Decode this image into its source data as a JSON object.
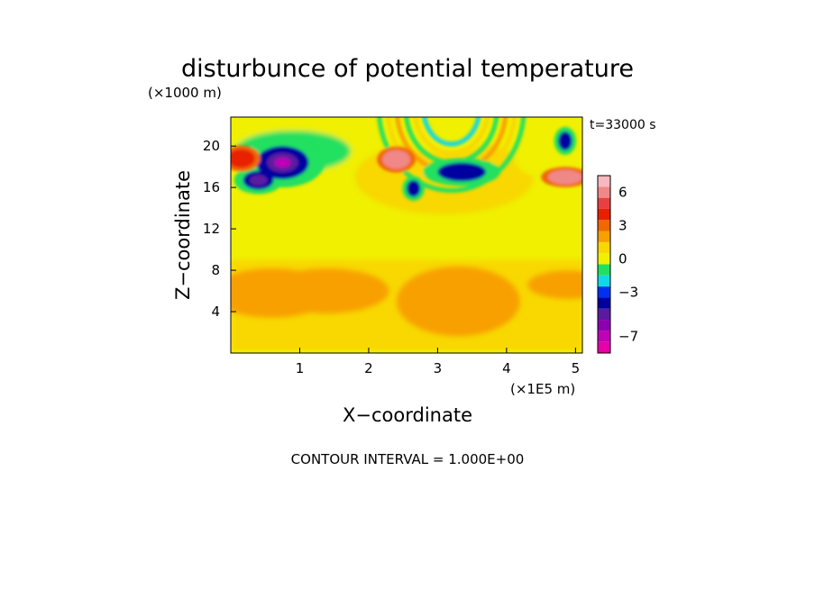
{
  "chart_data": {
    "type": "heatmap",
    "title": "disturbunce of potential temperature",
    "time_label": "t=33000 s",
    "xlabel": "X−coordinate",
    "ylabel": "Z−coordinate",
    "x_unit": "(×1E5 m)",
    "y_unit": "(×1000 m)",
    "xlim": [
      0,
      5.1
    ],
    "ylim": [
      0,
      22.8
    ],
    "x_ticks": [
      1,
      2,
      3,
      4,
      5
    ],
    "y_ticks": [
      4,
      8,
      12,
      16,
      20
    ],
    "footer": "CONTOUR INTERVAL = 1.000E+00",
    "colorbar": {
      "levels": [
        -9,
        -8,
        -7,
        -6,
        -5,
        -4,
        -3,
        -2,
        -1,
        0,
        1,
        2,
        3,
        4,
        5,
        6,
        7
      ],
      "colors": [
        "#e800a8",
        "#c000b8",
        "#8c00b0",
        "#5a1aa0",
        "#0000a0",
        "#0030f0",
        "#10d8e8",
        "#20e060",
        "#f0f000",
        "#f8d800",
        "#f8a000",
        "#f06800",
        "#e82000",
        "#e84040",
        "#f08888",
        "#f8b8c0"
      ],
      "tick_labels": [
        {
          "value": -7,
          "label": "−7"
        },
        {
          "value": -3,
          "label": "−3"
        },
        {
          "value": 0,
          "label": "0"
        },
        {
          "value": 3,
          "label": "3"
        },
        {
          "value": 6,
          "label": "6"
        }
      ]
    },
    "field_features": {
      "background": {
        "value": 0.4,
        "note": "yellow above z≈9, yellow-orange below"
      },
      "warm_lower_band": [
        {
          "x": 0.6,
          "z": 5.8,
          "rx": 0.9,
          "rz": 2.4,
          "value": 1.6
        },
        {
          "x": 1.4,
          "z": 6.0,
          "rx": 0.9,
          "rz": 2.2,
          "value": 1.4
        },
        {
          "x": 3.3,
          "z": 5.0,
          "rx": 0.9,
          "rz": 3.4,
          "value": 1.7
        },
        {
          "x": 4.9,
          "z": 6.6,
          "rx": 0.6,
          "rz": 1.4,
          "value": 1.3
        }
      ],
      "cool_upper_band": [
        {
          "x": 0.9,
          "z": 19.5,
          "rx": 1.4,
          "rz": 4.0,
          "value": -1.1
        },
        {
          "x": 4.7,
          "z": 19.0,
          "rx": 1.0,
          "rz": 4.5,
          "value": -1.0
        }
      ],
      "cold_anomalies": [
        {
          "x": 0.75,
          "z": 18.4,
          "rx": 0.38,
          "rz": 1.6,
          "value": -7.5
        },
        {
          "x": 0.4,
          "z": 16.7,
          "rx": 0.22,
          "rz": 0.9,
          "value": -5.5
        },
        {
          "x": 3.35,
          "z": 17.5,
          "rx": 0.35,
          "rz": 0.9,
          "value": -3.5
        },
        {
          "x": 2.65,
          "z": 15.9,
          "rx": 0.1,
          "rz": 0.8,
          "value": -4.0
        },
        {
          "x": 4.85,
          "z": 20.5,
          "rx": 0.1,
          "rz": 0.9,
          "value": -3.5
        }
      ],
      "warm_anomalies": [
        {
          "x": 0.15,
          "z": 18.8,
          "rx": 0.2,
          "rz": 0.9,
          "value": 3.5
        },
        {
          "x": 2.4,
          "z": 18.7,
          "rx": 0.2,
          "rz": 0.9,
          "value": 5.0
        },
        {
          "x": 4.85,
          "z": 17.0,
          "rx": 0.25,
          "rz": 0.7,
          "value": 5.2
        }
      ]
    }
  }
}
